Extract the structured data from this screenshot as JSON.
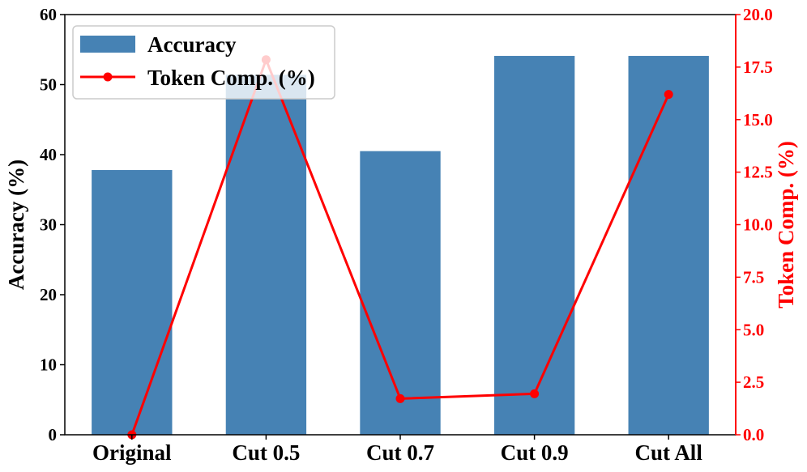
{
  "chart_data": {
    "type": "bar+line",
    "categories": [
      "Original",
      "Cut 0.5",
      "Cut 0.7",
      "Cut 0.9",
      "Cut All"
    ],
    "series": [
      {
        "name": "Accuracy",
        "type": "bar",
        "axis": "left",
        "color": "#4682B4",
        "values": [
          37.8,
          51.4,
          40.5,
          54.1,
          54.1
        ]
      },
      {
        "name": "Token Comp. (%)",
        "type": "line",
        "axis": "right",
        "color": "#FF0000",
        "values": [
          0.0,
          17.85,
          1.72,
          1.95,
          16.2
        ]
      }
    ],
    "ylabel": "Accuracy (%)",
    "y2label": "Token Comp. (%)",
    "ylim": [
      0,
      60
    ],
    "y2lim": [
      0,
      20
    ],
    "yticks": [
      "0",
      "10",
      "20",
      "30",
      "40",
      "50",
      "60"
    ],
    "y2ticks": [
      "0.0",
      "2.5",
      "5.0",
      "7.5",
      "10.0",
      "12.5",
      "15.0",
      "17.5",
      "20.0"
    ],
    "legend": {
      "position": "top-left",
      "entries": [
        "Accuracy",
        "Token Comp. (%)"
      ]
    }
  }
}
